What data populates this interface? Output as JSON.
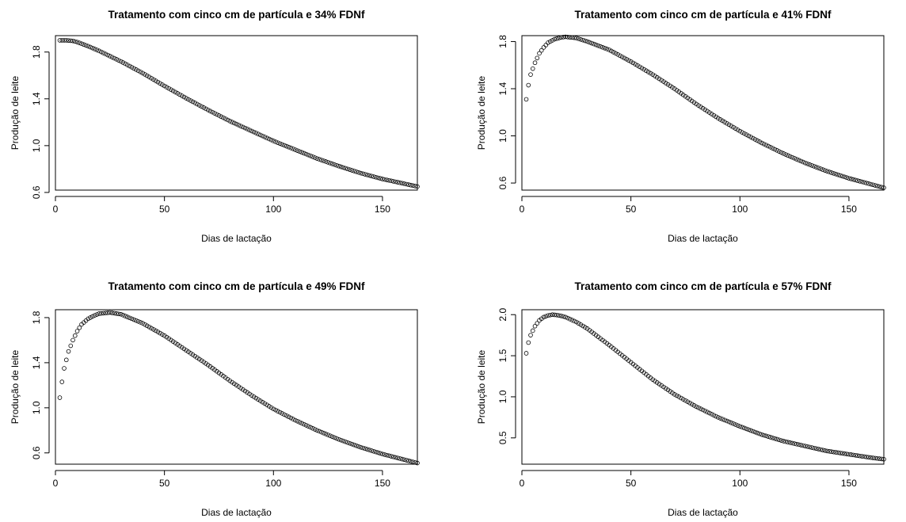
{
  "chart_data": [
    {
      "type": "scatter",
      "title": "Tratamento com cinco cm de partícula e 34% FDNf",
      "xlabel": "Dias de lactação",
      "ylabel": "Produção de leite",
      "xlim": [
        0,
        166
      ],
      "ylim": [
        0.62,
        1.94
      ],
      "xticks": [
        0,
        50,
        100,
        150
      ],
      "xtick_labels": [
        "0",
        "50",
        "100",
        "150"
      ],
      "yticks": [
        0.6,
        1.0,
        1.4,
        1.8
      ],
      "ytick_labels": [
        "0.6",
        "1.0",
        "1.4",
        "1.8"
      ],
      "marker": "open-circle",
      "grid": false,
      "series": [
        {
          "x": [
            2,
            5,
            8,
            10,
            15,
            20,
            25,
            30,
            40,
            50,
            60,
            70,
            80,
            90,
            100,
            110,
            120,
            130,
            140,
            150,
            160,
            166
          ],
          "y": [
            1.9,
            1.9,
            1.895,
            1.885,
            1.85,
            1.81,
            1.765,
            1.72,
            1.62,
            1.51,
            1.405,
            1.305,
            1.21,
            1.125,
            1.04,
            0.965,
            0.89,
            0.825,
            0.765,
            0.715,
            0.675,
            0.65
          ]
        }
      ]
    },
    {
      "type": "scatter",
      "title": "Tratamento com cinco cm de partícula e 41% FDNf",
      "xlabel": "Dias de lactação",
      "ylabel": "Produção de leite",
      "xlim": [
        0,
        166
      ],
      "ylim": [
        0.54,
        1.85
      ],
      "xticks": [
        0,
        50,
        100,
        150
      ],
      "xtick_labels": [
        "0",
        "50",
        "100",
        "150"
      ],
      "yticks": [
        0.6,
        1.0,
        1.4,
        1.8
      ],
      "ytick_labels": [
        "0.6",
        "1.0",
        "1.4",
        "1.8"
      ],
      "marker": "open-circle",
      "grid": false,
      "series": [
        {
          "x": [
            2,
            3,
            4,
            6,
            8,
            10,
            12,
            15,
            18,
            20,
            25,
            30,
            40,
            50,
            60,
            70,
            80,
            90,
            100,
            110,
            120,
            130,
            140,
            150,
            160,
            166
          ],
          "y": [
            1.31,
            1.43,
            1.52,
            1.62,
            1.7,
            1.75,
            1.79,
            1.82,
            1.835,
            1.84,
            1.83,
            1.8,
            1.73,
            1.63,
            1.52,
            1.4,
            1.27,
            1.15,
            1.04,
            0.94,
            0.85,
            0.77,
            0.7,
            0.64,
            0.59,
            0.56
          ]
        }
      ]
    },
    {
      "type": "scatter",
      "title": "Tratamento com cinco cm de partícula e 49% FDNf",
      "xlabel": "Dias de lactação",
      "ylabel": "Produção de leite",
      "xlim": [
        0,
        166
      ],
      "ylim": [
        0.5,
        1.87
      ],
      "xticks": [
        0,
        50,
        100,
        150
      ],
      "xtick_labels": [
        "0",
        "50",
        "100",
        "150"
      ],
      "yticks": [
        0.6,
        1.0,
        1.4,
        1.8
      ],
      "ytick_labels": [
        "0.6",
        "1.0",
        "1.4",
        "1.8"
      ],
      "marker": "open-circle",
      "grid": false,
      "series": [
        {
          "x": [
            2,
            3,
            4,
            6,
            8,
            10,
            12,
            15,
            18,
            20,
            25,
            30,
            40,
            50,
            60,
            70,
            80,
            90,
            100,
            110,
            120,
            130,
            140,
            150,
            160,
            166
          ],
          "y": [
            1.09,
            1.23,
            1.35,
            1.5,
            1.6,
            1.68,
            1.74,
            1.79,
            1.82,
            1.835,
            1.845,
            1.83,
            1.75,
            1.64,
            1.51,
            1.38,
            1.24,
            1.11,
            0.99,
            0.89,
            0.8,
            0.72,
            0.65,
            0.59,
            0.54,
            0.51
          ]
        }
      ]
    },
    {
      "type": "scatter",
      "title": "Tratamento com cinco cm de partícula e 57% FDNf",
      "xlabel": "Dias de lactação",
      "ylabel": "Produção de leite",
      "xlim": [
        0,
        166
      ],
      "ylim": [
        0.18,
        2.06
      ],
      "xticks": [
        0,
        50,
        100,
        150
      ],
      "xtick_labels": [
        "0",
        "50",
        "100",
        "150"
      ],
      "yticks": [
        0.5,
        1.0,
        1.5,
        2.0
      ],
      "ytick_labels": [
        "0.5",
        "1.0",
        "1.5",
        "2.0"
      ],
      "marker": "open-circle",
      "grid": false,
      "series": [
        {
          "x": [
            2,
            3,
            4,
            6,
            8,
            10,
            12,
            14,
            16,
            18,
            20,
            25,
            30,
            40,
            50,
            60,
            70,
            80,
            90,
            100,
            110,
            120,
            130,
            140,
            150,
            160,
            166
          ],
          "y": [
            1.53,
            1.66,
            1.75,
            1.86,
            1.93,
            1.97,
            1.99,
            2.0,
            1.995,
            1.985,
            1.97,
            1.91,
            1.83,
            1.63,
            1.42,
            1.21,
            1.03,
            0.88,
            0.75,
            0.64,
            0.54,
            0.46,
            0.4,
            0.34,
            0.3,
            0.26,
            0.24
          ]
        }
      ]
    }
  ]
}
